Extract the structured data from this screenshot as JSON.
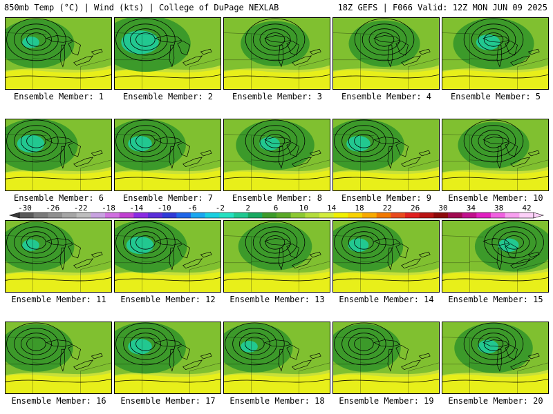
{
  "header": {
    "left": "850mb Temp (°C) | Wind (kts) | College of DuPage NEXLAB",
    "right": "18Z GEFS | F066 Valid: 12Z MON JUN 09 2025"
  },
  "members": [
    {
      "label": "Ensemble Member: 1",
      "coolness": 0.45,
      "low": "west"
    },
    {
      "label": "Ensemble Member: 2",
      "coolness": 0.75,
      "low": "west"
    },
    {
      "label": "Ensemble Member: 3",
      "coolness": 0.3,
      "low": "center"
    },
    {
      "label": "Ensemble Member: 4",
      "coolness": 0.35,
      "low": "center"
    },
    {
      "label": "Ensemble Member: 5",
      "coolness": 0.55,
      "low": "center"
    },
    {
      "label": "Ensemble Member: 6",
      "coolness": 0.6,
      "low": "west"
    },
    {
      "label": "Ensemble Member: 7",
      "coolness": 0.55,
      "low": "west"
    },
    {
      "label": "Ensemble Member: 8",
      "coolness": 0.5,
      "low": "center"
    },
    {
      "label": "Ensemble Member: 9",
      "coolness": 0.55,
      "low": "west"
    },
    {
      "label": "Ensemble Member: 10",
      "coolness": 0.35,
      "low": "center"
    },
    {
      "label": "Ensemble Member: 11",
      "coolness": 0.45,
      "low": "west"
    },
    {
      "label": "Ensemble Member: 12",
      "coolness": 0.6,
      "low": "west"
    },
    {
      "label": "Ensemble Member: 13",
      "coolness": 0.4,
      "low": "center"
    },
    {
      "label": "Ensemble Member: 14",
      "coolness": 0.5,
      "low": "west"
    },
    {
      "label": "Ensemble Member: 15",
      "coolness": 0.5,
      "low": "east"
    },
    {
      "label": "Ensemble Member: 16",
      "coolness": 0.4,
      "low": "west"
    },
    {
      "label": "Ensemble Member: 17",
      "coolness": 0.55,
      "low": "west"
    },
    {
      "label": "Ensemble Member: 18",
      "coolness": 0.45,
      "low": "west"
    },
    {
      "label": "Ensemble Member: 19",
      "coolness": 0.4,
      "low": "west"
    },
    {
      "label": "Ensemble Member: 20",
      "coolness": 0.5,
      "low": "center"
    }
  ],
  "colorbar": {
    "labels": [
      "-30",
      "-26",
      "-22",
      "-18",
      "-14",
      "-10",
      "-6",
      "-2",
      "2",
      "6",
      "10",
      "14",
      "18",
      "22",
      "26",
      "30",
      "34",
      "38",
      "42"
    ],
    "colors": [
      "#5a5a5a",
      "#7a7a7a",
      "#8f8f8f",
      "#a6a6a6",
      "#bdbdbd",
      "#c8a2e0",
      "#d070e0",
      "#c040d0",
      "#8a2be2",
      "#5a2ed8",
      "#2f3ad6",
      "#1e66e8",
      "#1aa6f0",
      "#19cfe0",
      "#25e0c0",
      "#20c890",
      "#18a860",
      "#3c9a2a",
      "#5aa828",
      "#8cc832",
      "#b4dc3c",
      "#d2ec3c",
      "#f0f000",
      "#f8d200",
      "#f8aa00",
      "#f07800",
      "#e84a1e",
      "#e02020",
      "#b81414",
      "#8c0a0a",
      "#a00a50",
      "#c0108c",
      "#e020c0",
      "#f060e0",
      "#f8a0f0",
      "#fcd0f8"
    ]
  }
}
